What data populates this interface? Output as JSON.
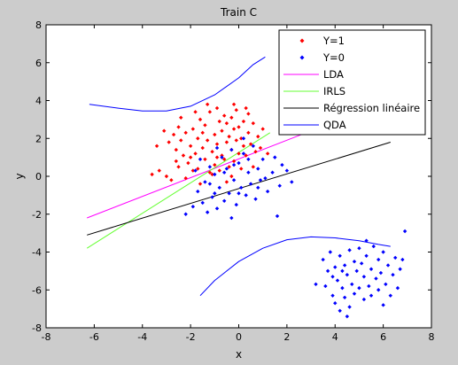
{
  "chart_data": {
    "type": "scatter",
    "title": "Train C",
    "xlabel": "x",
    "ylabel": "y",
    "xlim": [
      -8,
      8
    ],
    "ylim": [
      -8,
      8
    ],
    "x_ticks": [
      "-8",
      "-6",
      "-4",
      "-2",
      "0",
      "2",
      "4",
      "6",
      "8"
    ],
    "y_ticks": [
      "-8",
      "-6",
      "-4",
      "-2",
      "0",
      "2",
      "4",
      "6",
      "8"
    ],
    "grid": false,
    "legend_position": "top-right",
    "scatter_series": [
      {
        "name": "Y=1",
        "color": "#ff0000",
        "marker": "diamond",
        "points": [
          [
            -3.1,
            2.4
          ],
          [
            -2.9,
            1.8
          ],
          [
            -2.7,
            2.2
          ],
          [
            -2.6,
            1.4
          ],
          [
            -2.5,
            2.6
          ],
          [
            -2.4,
            1.9
          ],
          [
            -2.3,
            1.1
          ],
          [
            -2.2,
            2.3
          ],
          [
            -2.1,
            0.7
          ],
          [
            -2.0,
            1.6
          ],
          [
            -1.9,
            2.5
          ],
          [
            -1.8,
            1.2
          ],
          [
            -1.7,
            0.4
          ],
          [
            -1.7,
            2.0
          ],
          [
            -1.6,
            3.0
          ],
          [
            -1.5,
            1.5
          ],
          [
            -1.4,
            0.9
          ],
          [
            -1.4,
            2.7
          ],
          [
            -1.3,
            1.9
          ],
          [
            -1.2,
            0.2
          ],
          [
            -1.2,
            3.4
          ],
          [
            -1.1,
            1.3
          ],
          [
            -1.0,
            2.2
          ],
          [
            -1.0,
            0.6
          ],
          [
            -0.9,
            3.6
          ],
          [
            -0.9,
            1.7
          ],
          [
            -0.8,
            2.9
          ],
          [
            -0.8,
            0.3
          ],
          [
            -0.7,
            1.1
          ],
          [
            -0.7,
            2.4
          ],
          [
            -0.6,
            3.2
          ],
          [
            -0.6,
            0.9
          ],
          [
            -0.5,
            1.8
          ],
          [
            -0.5,
            2.8
          ],
          [
            -0.4,
            0.5
          ],
          [
            -0.4,
            2.1
          ],
          [
            -0.3,
            1.4
          ],
          [
            -0.3,
            3.1
          ],
          [
            -0.2,
            2.5
          ],
          [
            -0.2,
            0.8
          ],
          [
            -0.1,
            1.9
          ],
          [
            -0.1,
            3.5
          ],
          [
            0.0,
            1.2
          ],
          [
            0.0,
            2.6
          ],
          [
            0.1,
            0.4
          ],
          [
            0.1,
            2.0
          ],
          [
            0.2,
            1.6
          ],
          [
            0.2,
            2.9
          ],
          [
            0.3,
            1.1
          ],
          [
            0.4,
            2.3
          ],
          [
            0.5,
            1.7
          ],
          [
            0.6,
            2.8
          ],
          [
            0.7,
            1.3
          ],
          [
            0.8,
            2.1
          ],
          [
            0.9,
            1.5
          ],
          [
            1.0,
            2.5
          ],
          [
            -3.6,
            0.1
          ],
          [
            -3.3,
            0.3
          ],
          [
            -3.0,
            0.0
          ],
          [
            -2.8,
            -0.2
          ],
          [
            -2.5,
            0.5
          ],
          [
            -2.2,
            -0.1
          ],
          [
            -1.9,
            0.3
          ],
          [
            -1.6,
            -0.4
          ],
          [
            -2.4,
            3.1
          ],
          [
            -1.8,
            3.4
          ],
          [
            -1.3,
            3.8
          ],
          [
            -0.2,
            3.8
          ],
          [
            0.4,
            3.3
          ],
          [
            -3.4,
            1.6
          ],
          [
            -2.0,
            1.0
          ],
          [
            -1.5,
            2.3
          ],
          [
            -0.9,
            1.0
          ],
          [
            -0.3,
            0.0
          ],
          [
            0.6,
            0.5
          ],
          [
            1.2,
            1.2
          ],
          [
            -1.1,
            0.1
          ],
          [
            -2.6,
            0.8
          ],
          [
            -0.5,
            -0.3
          ],
          [
            0.3,
            3.6
          ]
        ]
      },
      {
        "name": "Y=0",
        "color": "#0000ff",
        "marker": "diamond",
        "points": [
          [
            -2.2,
            -2.0
          ],
          [
            -1.9,
            -1.6
          ],
          [
            -1.7,
            -0.8
          ],
          [
            -1.5,
            -1.4
          ],
          [
            -1.4,
            -0.3
          ],
          [
            -1.3,
            -1.9
          ],
          [
            -1.2,
            0.5
          ],
          [
            -1.1,
            -1.1
          ],
          [
            -1.0,
            0.1
          ],
          [
            -0.9,
            -1.7
          ],
          [
            -0.8,
            -0.6
          ],
          [
            -0.7,
            1.0
          ],
          [
            -0.6,
            -1.3
          ],
          [
            -0.5,
            0.4
          ],
          [
            -0.4,
            -0.9
          ],
          [
            -0.3,
            1.4
          ],
          [
            -0.2,
            -0.2
          ],
          [
            -0.1,
            -1.5
          ],
          [
            0.0,
            0.7
          ],
          [
            0.1,
            -0.6
          ],
          [
            0.2,
            1.2
          ],
          [
            0.3,
            -1.0
          ],
          [
            0.4,
            0.2
          ],
          [
            0.5,
            -0.4
          ],
          [
            0.6,
            1.6
          ],
          [
            0.7,
            -1.2
          ],
          [
            0.8,
            0.4
          ],
          [
            0.9,
            -0.2
          ],
          [
            1.0,
            0.9
          ],
          [
            1.2,
            -0.8
          ],
          [
            1.4,
            0.2
          ],
          [
            1.6,
            -2.1
          ],
          [
            1.7,
            -0.5
          ],
          [
            1.8,
            0.6
          ],
          [
            2.0,
            0.3
          ],
          [
            2.2,
            -0.3
          ],
          [
            -1.6,
            0.9
          ],
          [
            -0.9,
            1.5
          ],
          [
            0.2,
            2.0
          ],
          [
            -0.3,
            -2.2
          ],
          [
            -1.2,
            -0.4
          ],
          [
            0.4,
            0.9
          ],
          [
            -0.6,
            0.2
          ],
          [
            1.1,
            -0.1
          ],
          [
            0.0,
            -0.9
          ],
          [
            -1.8,
            0.3
          ],
          [
            -0.2,
            0.6
          ],
          [
            0.8,
            -0.6
          ],
          [
            1.5,
            1.0
          ],
          [
            -1.0,
            -0.9
          ],
          [
            3.5,
            -4.4
          ],
          [
            3.6,
            -5.8
          ],
          [
            3.7,
            -5.0
          ],
          [
            3.8,
            -4.0
          ],
          [
            3.9,
            -6.3
          ],
          [
            4.0,
            -4.8
          ],
          [
            4.0,
            -6.7
          ],
          [
            4.1,
            -5.5
          ],
          [
            4.2,
            -4.2
          ],
          [
            4.2,
            -7.1
          ],
          [
            4.3,
            -5.9
          ],
          [
            4.4,
            -4.7
          ],
          [
            4.4,
            -6.4
          ],
          [
            4.5,
            -5.2
          ],
          [
            4.6,
            -3.9
          ],
          [
            4.6,
            -6.9
          ],
          [
            4.7,
            -5.7
          ],
          [
            4.8,
            -4.5
          ],
          [
            4.8,
            -6.2
          ],
          [
            4.9,
            -5.0
          ],
          [
            5.0,
            -3.8
          ],
          [
            5.0,
            -5.9
          ],
          [
            5.1,
            -4.6
          ],
          [
            5.2,
            -6.5
          ],
          [
            5.2,
            -5.3
          ],
          [
            5.3,
            -4.2
          ],
          [
            5.4,
            -5.8
          ],
          [
            5.5,
            -4.9
          ],
          [
            5.5,
            -6.3
          ],
          [
            5.6,
            -3.7
          ],
          [
            5.7,
            -5.4
          ],
          [
            5.8,
            -4.4
          ],
          [
            5.8,
            -6.0
          ],
          [
            5.9,
            -5.1
          ],
          [
            6.0,
            -4.0
          ],
          [
            6.1,
            -5.7
          ],
          [
            6.2,
            -4.7
          ],
          [
            6.3,
            -6.3
          ],
          [
            6.4,
            -5.2
          ],
          [
            6.5,
            -4.3
          ],
          [
            6.6,
            -5.9
          ],
          [
            6.7,
            -4.9
          ],
          [
            6.9,
            -2.9
          ],
          [
            6.8,
            -4.4
          ],
          [
            3.2,
            -5.7
          ],
          [
            4.5,
            -7.4
          ],
          [
            5.3,
            -3.4
          ],
          [
            6.0,
            -6.8
          ],
          [
            3.9,
            -5.3
          ],
          [
            4.3,
            -5.0
          ]
        ]
      }
    ],
    "line_series": [
      {
        "name": "LDA",
        "color": "#ff00ff",
        "points": [
          [
            -6.3,
            -2.2
          ],
          [
            2.8,
            2.3
          ]
        ]
      },
      {
        "name": "IRLS",
        "color": "#66ff33",
        "points": [
          [
            -6.3,
            -3.8
          ],
          [
            1.3,
            2.3
          ]
        ]
      },
      {
        "name": "Régression linéaire",
        "color": "#000000",
        "points": [
          [
            -6.3,
            -3.1
          ],
          [
            6.3,
            1.8
          ]
        ]
      },
      {
        "name": "QDA",
        "color": "#0000ff",
        "curves": [
          [
            [
              -6.2,
              3.8
            ],
            [
              -5.0,
              3.6
            ],
            [
              -4.0,
              3.45
            ],
            [
              -3.0,
              3.45
            ],
            [
              -2.0,
              3.7
            ],
            [
              -1.0,
              4.3
            ],
            [
              0.0,
              5.2
            ],
            [
              0.6,
              5.9
            ],
            [
              1.1,
              6.3
            ]
          ],
          [
            [
              -1.6,
              -6.3
            ],
            [
              -1.0,
              -5.5
            ],
            [
              0.0,
              -4.5
            ],
            [
              1.0,
              -3.8
            ],
            [
              2.0,
              -3.35
            ],
            [
              3.0,
              -3.2
            ],
            [
              4.0,
              -3.25
            ],
            [
              5.0,
              -3.4
            ],
            [
              5.8,
              -3.6
            ],
            [
              6.3,
              -3.7
            ]
          ]
        ]
      }
    ]
  }
}
